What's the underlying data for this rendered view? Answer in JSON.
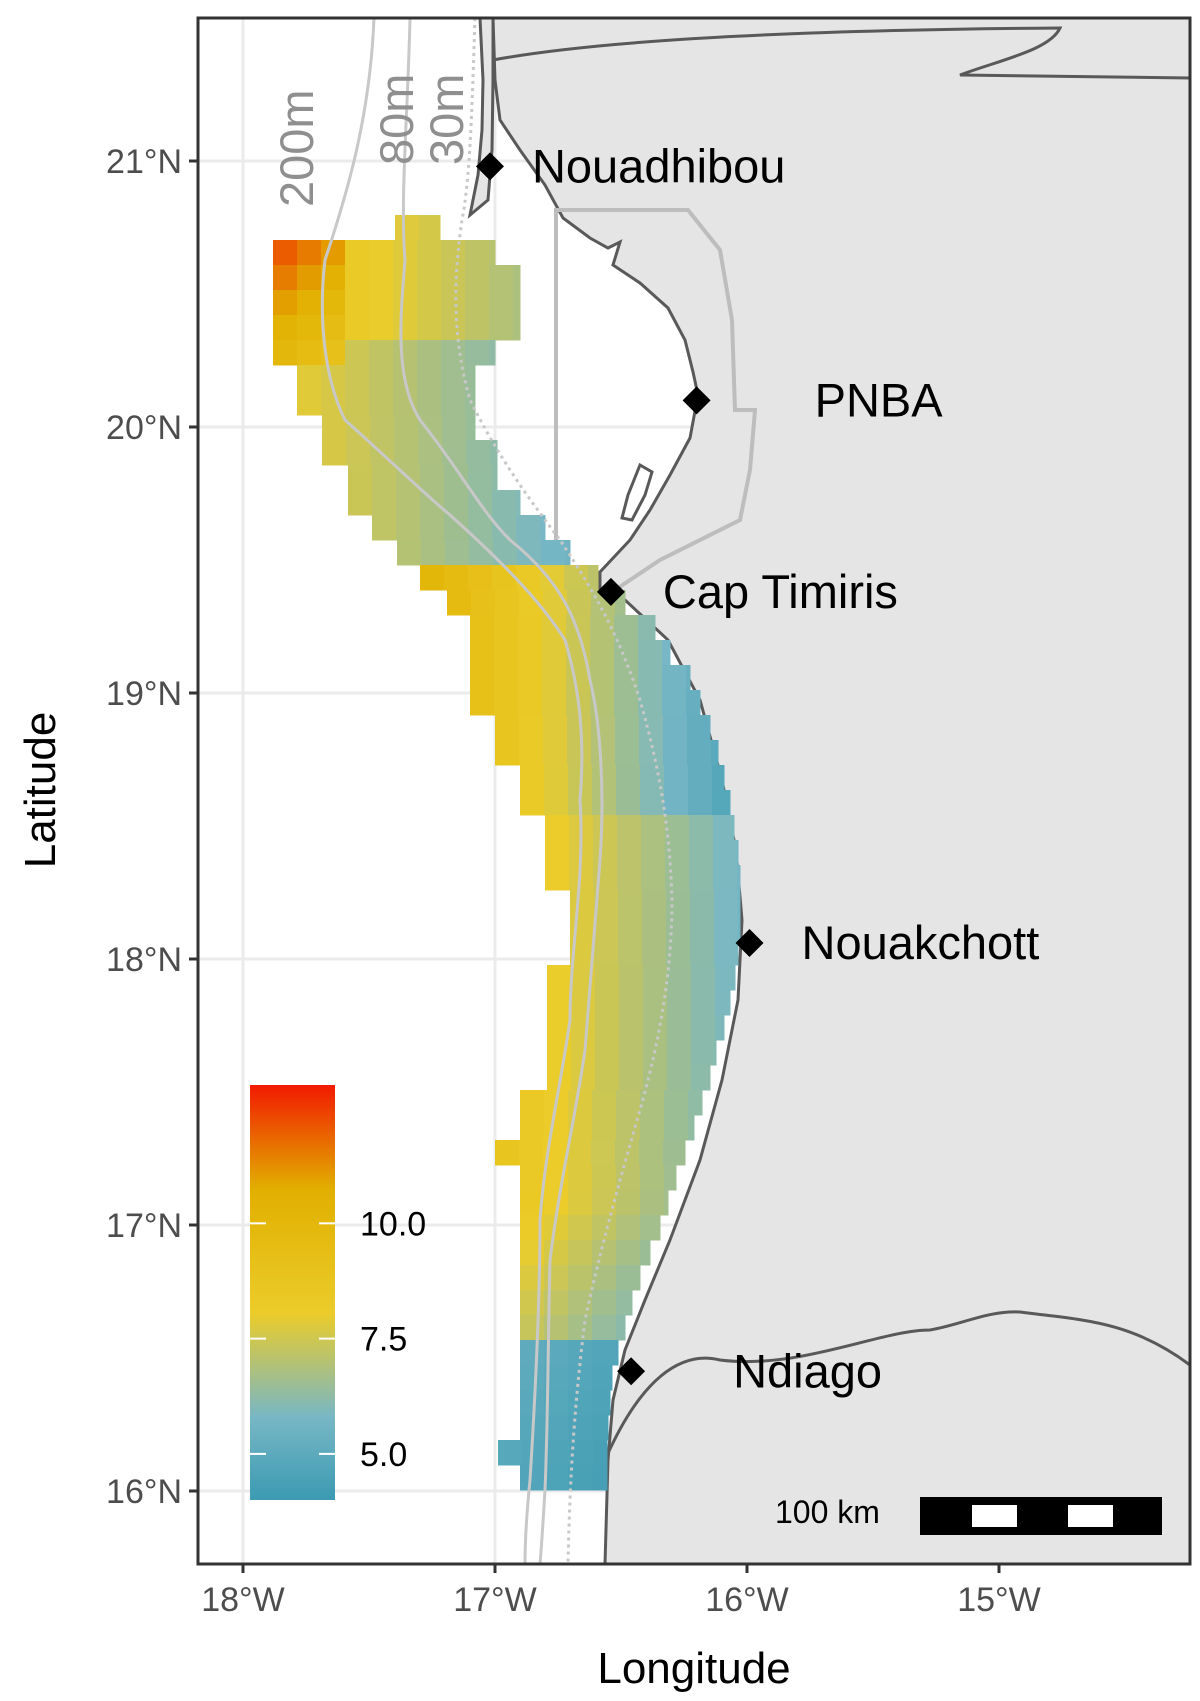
{
  "map": {
    "xlabel": "Longitude",
    "ylabel": "Latitude",
    "lon_ticks": [
      {
        "value": -18,
        "label": "18°W"
      },
      {
        "value": -17,
        "label": "17°W"
      },
      {
        "value": -16,
        "label": "16°W"
      },
      {
        "value": -15,
        "label": "15°W"
      }
    ],
    "lat_ticks": [
      {
        "value": 21,
        "label": "21°N"
      },
      {
        "value": 20,
        "label": "20°N"
      },
      {
        "value": 19,
        "label": "19°N"
      },
      {
        "value": 18,
        "label": "18°N"
      },
      {
        "value": 17,
        "label": "17°N"
      },
      {
        "value": 16,
        "label": "16°N"
      }
    ],
    "lon_range": [
      -18.2,
      -14.2
    ],
    "lat_range": [
      15.75,
      21.55
    ],
    "places": [
      {
        "name": "Nouadhibou",
        "lon": -17.02,
        "lat": 20.98
      },
      {
        "name": "PNBA",
        "lon": -16.2,
        "lat": 20.1
      },
      {
        "name": "Cap Timiris",
        "lon": -16.54,
        "lat": 19.38
      },
      {
        "name": "Nouakchott",
        "lon": -15.99,
        "lat": 18.06
      },
      {
        "name": "Ndiago",
        "lon": -16.46,
        "lat": 16.45
      }
    ],
    "isobaths": [
      {
        "label": "200m"
      },
      {
        "label": "80m"
      },
      {
        "label": "30m"
      }
    ],
    "legend": {
      "ticks": [
        {
          "value": 10.0,
          "label": "10.0"
        },
        {
          "value": 7.5,
          "label": "7.5"
        },
        {
          "value": 5.0,
          "label": "5.0"
        }
      ],
      "range": [
        4.0,
        13.0
      ],
      "colors": [
        "#3b9ab2",
        "#78b7c5",
        "#ebcc2a",
        "#e1af00",
        "#f21a00"
      ]
    },
    "scale_bar": {
      "label": "100 km"
    },
    "colors": {
      "land": "#e5e5e5",
      "coast": "#595959",
      "panel_border": "#333333",
      "grid": "#ebebeb",
      "isobath": "#c8c8c8",
      "pnba_boundary": "#bdbdbd",
      "marker": "#000000"
    }
  }
}
